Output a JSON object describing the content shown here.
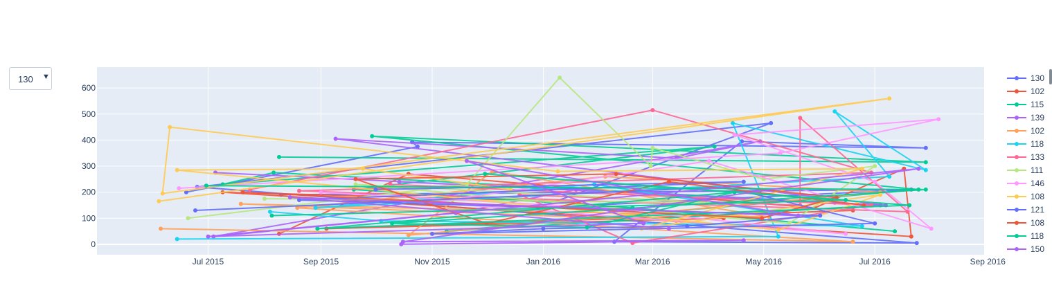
{
  "dropdown": {
    "selected": "130"
  },
  "chart_data": {
    "type": "line",
    "title": "",
    "xlabel": "",
    "ylabel": "",
    "x_type": "date",
    "xlim": [
      "2015-05-01",
      "2016-08-30"
    ],
    "ylim": [
      -40,
      680
    ],
    "x_ticks": [
      {
        "date": "2015-07-01",
        "label": "Jul 2015"
      },
      {
        "date": "2015-09-01",
        "label": "Sep 2015"
      },
      {
        "date": "2015-11-01",
        "label": "Nov 2015"
      },
      {
        "date": "2016-01-01",
        "label": "Jan 2016"
      },
      {
        "date": "2016-03-01",
        "label": "Mar 2016"
      },
      {
        "date": "2016-05-01",
        "label": "May 2016"
      },
      {
        "date": "2016-07-01",
        "label": "Jul 2016"
      },
      {
        "date": "2016-09-01",
        "label": "Sep 2016"
      }
    ],
    "y_ticks": [
      0,
      100,
      200,
      300,
      400,
      500,
      600
    ],
    "grid": true,
    "legend_position": "right",
    "series": [
      {
        "name": "130",
        "color": "#636efa",
        "points": [
          [
            "2015-06-19",
            200
          ],
          [
            "2015-10-24",
            375
          ],
          [
            "2015-10-21",
            392
          ],
          [
            "2016-07-29",
            370
          ],
          [
            "2016-04-19",
            395
          ],
          [
            "2016-02-09",
            10
          ],
          [
            "2016-07-24",
            5
          ],
          [
            "2015-06-25",
            220
          ],
          [
            "2016-05-05",
            465
          ],
          [
            "2015-12-29",
            140
          ],
          [
            "2016-07-21",
            210
          ],
          [
            "2015-08-10",
            190
          ]
        ]
      },
      {
        "name": "102",
        "color": "#ef553b",
        "points": [
          [
            "2015-08-09",
            40
          ],
          [
            "2015-10-19",
            270
          ],
          [
            "2016-05-29",
            140
          ],
          [
            "2016-07-17",
            290
          ],
          [
            "2016-07-21",
            30
          ],
          [
            "2015-07-09",
            200
          ],
          [
            "2016-01-09",
            165
          ],
          [
            "2016-04-09",
            100
          ],
          [
            "2015-09-04",
            60
          ],
          [
            "2016-06-19",
            130
          ]
        ]
      },
      {
        "name": "115",
        "color": "#00cc96",
        "points": [
          [
            "2015-08-09",
            335
          ],
          [
            "2016-07-29",
            315
          ],
          [
            "2015-09-29",
            415
          ],
          [
            "2016-07-25",
            210
          ],
          [
            "2015-11-09",
            50
          ],
          [
            "2016-07-04",
            150
          ],
          [
            "2015-08-06",
            275
          ],
          [
            "2015-07-09",
            230
          ],
          [
            "2016-04-04",
            375
          ],
          [
            "2015-09-19",
            210
          ],
          [
            "2016-02-19",
            140
          ],
          [
            "2016-07-12",
            50
          ]
        ]
      },
      {
        "name": "139",
        "color": "#ab63fa",
        "points": [
          [
            "2015-07-05",
            275
          ],
          [
            "2016-07-07",
            150
          ],
          [
            "2015-09-09",
            405
          ],
          [
            "2016-03-14",
            330
          ],
          [
            "2016-04-29",
            395
          ],
          [
            "2015-07-04",
            30
          ],
          [
            "2015-11-14",
            120
          ],
          [
            "2016-01-19",
            210
          ],
          [
            "2016-06-09",
            160
          ],
          [
            "2015-10-14",
            240
          ]
        ]
      },
      {
        "name": "102",
        "color": "#ffa15a",
        "points": [
          [
            "2015-06-05",
            60
          ],
          [
            "2016-06-19",
            10
          ],
          [
            "2015-08-19",
            140
          ],
          [
            "2016-02-04",
            260
          ],
          [
            "2016-07-04",
            200
          ],
          [
            "2015-10-19",
            35
          ],
          [
            "2015-12-04",
            280
          ],
          [
            "2016-05-04",
            105
          ],
          [
            "2015-07-19",
            155
          ],
          [
            "2016-03-14",
            90
          ]
        ]
      },
      {
        "name": "118",
        "color": "#19d3f3",
        "points": [
          [
            "2015-06-14",
            20
          ],
          [
            "2016-05-09",
            30
          ],
          [
            "2016-04-14",
            465
          ],
          [
            "2016-07-29",
            285
          ],
          [
            "2016-06-09",
            510
          ],
          [
            "2016-07-09",
            260
          ],
          [
            "2015-08-29",
            140
          ],
          [
            "2016-01-29",
            230
          ],
          [
            "2016-06-24",
            70
          ],
          [
            "2015-10-04",
            90
          ],
          [
            "2015-08-04",
            125
          ]
        ]
      },
      {
        "name": "133",
        "color": "#ff6692",
        "points": [
          [
            "2015-07-24",
            210
          ],
          [
            "2016-03-01",
            515
          ],
          [
            "2016-06-29",
            275
          ],
          [
            "2015-08-20",
            205
          ],
          [
            "2016-07-19",
            125
          ],
          [
            "2016-05-21",
            485
          ],
          [
            "2016-05-21",
            150
          ],
          [
            "2015-12-19",
            190
          ],
          [
            "2016-02-19",
            5
          ],
          [
            "2016-06-29",
            150
          ],
          [
            "2015-10-09",
            230
          ]
        ]
      },
      {
        "name": "111",
        "color": "#b6e880",
        "points": [
          [
            "2015-06-20",
            100
          ],
          [
            "2015-11-20",
            230
          ],
          [
            "2016-01-10",
            640
          ],
          [
            "2016-02-29",
            300
          ],
          [
            "2016-03-01",
            370
          ],
          [
            "2016-05-01",
            250
          ],
          [
            "2016-07-01",
            300
          ],
          [
            "2016-05-15",
            80
          ],
          [
            "2015-09-20",
            230
          ],
          [
            "2016-04-01",
            160
          ],
          [
            "2015-08-01",
            175
          ]
        ]
      },
      {
        "name": "146",
        "color": "#ff97ff",
        "points": [
          [
            "2015-06-15",
            215
          ],
          [
            "2016-05-10",
            350
          ],
          [
            "2016-08-05",
            480
          ],
          [
            "2016-04-15",
            420
          ],
          [
            "2016-07-01",
            240
          ],
          [
            "2016-08-01",
            60
          ],
          [
            "2016-04-01",
            320
          ],
          [
            "2015-11-01",
            160
          ],
          [
            "2016-06-15",
            40
          ],
          [
            "2016-02-01",
            140
          ],
          [
            "2015-09-01",
            200
          ]
        ]
      },
      {
        "name": "108",
        "color": "#fecb52",
        "points": [
          [
            "2015-06-04",
            165
          ],
          [
            "2016-07-09",
            560
          ],
          [
            "2015-06-06",
            195
          ],
          [
            "2015-06-10",
            450
          ],
          [
            "2016-01-09",
            280
          ],
          [
            "2016-06-24",
            290
          ],
          [
            "2016-02-24",
            60
          ],
          [
            "2016-07-04",
            190
          ],
          [
            "2016-05-09",
            55
          ],
          [
            "2015-06-14",
            285
          ],
          [
            "2015-09-24",
            290
          ],
          [
            "2015-12-14",
            210
          ]
        ]
      },
      {
        "name": "121",
        "color": "#636efa",
        "points": [
          [
            "2015-06-24",
            130
          ],
          [
            "2016-04-10",
            220
          ],
          [
            "2016-07-01",
            80
          ],
          [
            "2015-11-01",
            40
          ],
          [
            "2016-01-01",
            60
          ],
          [
            "2016-03-20",
            70
          ],
          [
            "2016-06-01",
            110
          ],
          [
            "2015-08-20",
            170
          ],
          [
            "2016-04-20",
            240
          ],
          [
            "2015-10-01",
            210
          ]
        ]
      },
      {
        "name": "108",
        "color": "#ef553b",
        "points": [
          [
            "2015-07-20",
            200
          ],
          [
            "2016-04-30",
            100
          ],
          [
            "2016-06-10",
            180
          ],
          [
            "2016-02-10",
            270
          ],
          [
            "2015-09-20",
            250
          ],
          [
            "2015-12-01",
            80
          ],
          [
            "2016-03-10",
            240
          ],
          [
            "2016-06-25",
            150
          ]
        ]
      },
      {
        "name": "118",
        "color": "#00cc96",
        "points": [
          [
            "2015-06-30",
            225
          ],
          [
            "2016-07-29",
            210
          ],
          [
            "2015-10-10",
            80
          ],
          [
            "2016-01-25",
            65
          ],
          [
            "2016-04-15",
            200
          ],
          [
            "2015-08-30",
            60
          ],
          [
            "2016-07-20",
            150
          ],
          [
            "2015-11-30",
            270
          ],
          [
            "2016-06-15",
            170
          ],
          [
            "2015-08-05",
            110
          ]
        ]
      },
      {
        "name": "150",
        "color": "#ab63fa",
        "points": [
          [
            "2015-10-15",
            0
          ],
          [
            "2016-04-20",
            15
          ],
          [
            "2015-10-16",
            10
          ],
          [
            "2016-07-25",
            290
          ],
          [
            "2015-07-01",
            30
          ],
          [
            "2016-02-25",
            80
          ],
          [
            "2015-11-20",
            320
          ],
          [
            "2016-05-20",
            110
          ],
          [
            "2015-08-15",
            180
          ],
          [
            "2016-03-10",
            60
          ]
        ]
      }
    ]
  }
}
